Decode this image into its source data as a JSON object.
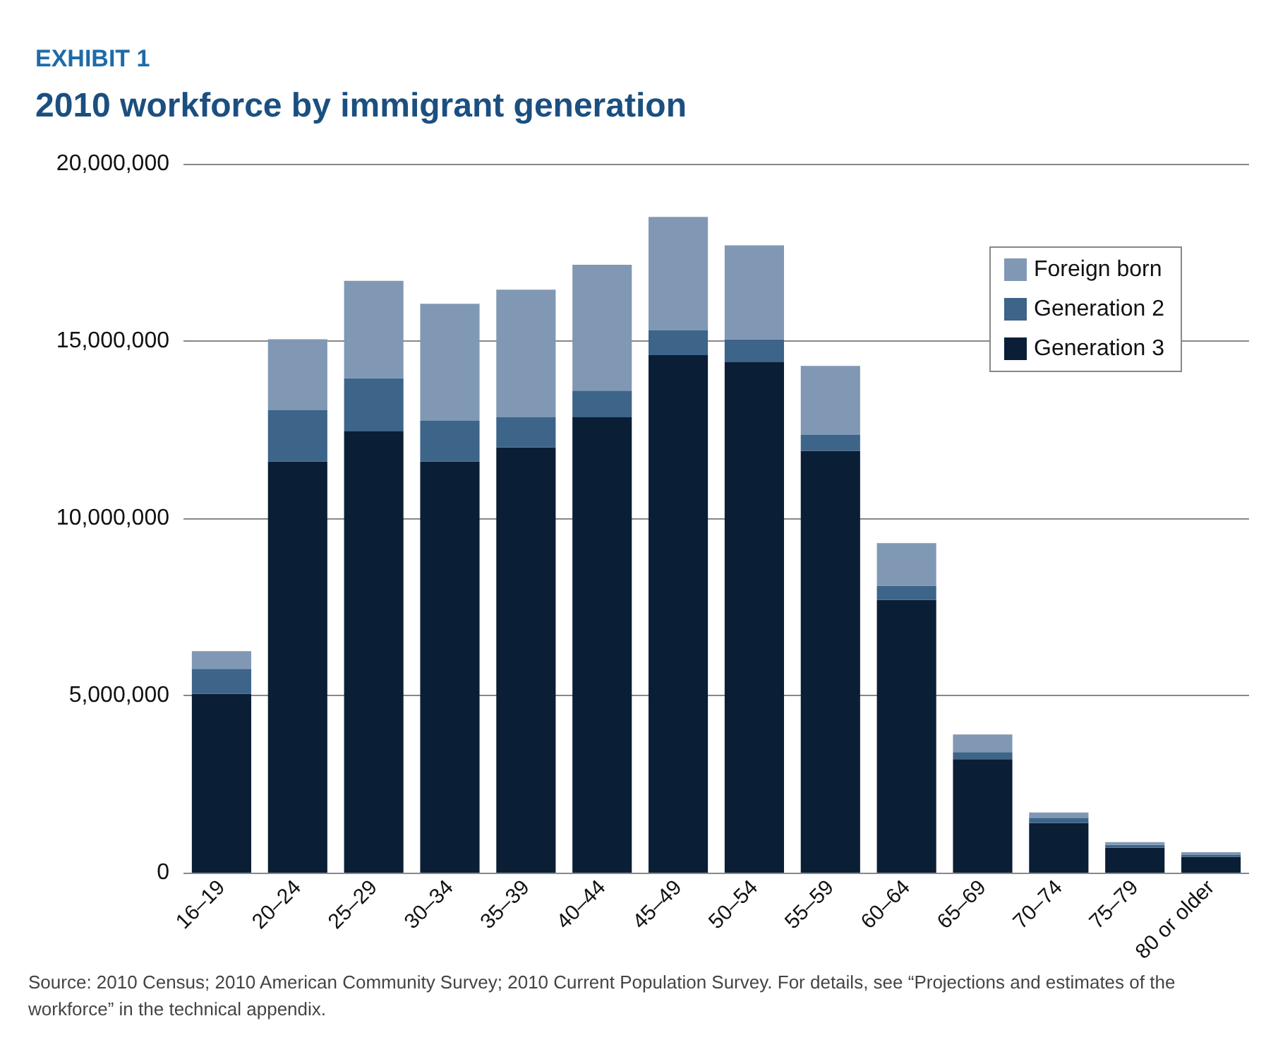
{
  "chart_data": {
    "type": "bar",
    "stacked": true,
    "title": "2010 workforce by immigrant generation",
    "subtitle": "EXHIBIT 1",
    "categories": [
      "16–19",
      "20–24",
      "25–29",
      "30–34",
      "35–39",
      "40–44",
      "45–49",
      "50–54",
      "55–59",
      "60–64",
      "65–69",
      "70–74",
      "75–79",
      "80 or older"
    ],
    "series": [
      {
        "name": "Generation 3",
        "color": "#0a1e36",
        "values": [
          5050000,
          11600000,
          12450000,
          11600000,
          12000000,
          12850000,
          14600000,
          14400000,
          11900000,
          7700000,
          3200000,
          1400000,
          700000,
          450000
        ]
      },
      {
        "name": "Generation 2",
        "color": "#3d6489",
        "values": [
          700000,
          1450000,
          1500000,
          1150000,
          850000,
          750000,
          700000,
          650000,
          450000,
          400000,
          200000,
          150000,
          80000,
          50000
        ]
      },
      {
        "name": "Foreign born",
        "color": "#8098b4",
        "values": [
          500000,
          2000000,
          2750000,
          3300000,
          3600000,
          3550000,
          3200000,
          2650000,
          1950000,
          1200000,
          500000,
          150000,
          80000,
          80000
        ]
      }
    ],
    "ylim": [
      0,
      20000000
    ],
    "yticks": [
      0,
      {
        "value": 5000000,
        "label": "5,000,000"
      },
      {
        "value": 10000000,
        "label": "10,000,000"
      },
      {
        "value": 15000000,
        "label": "15,000,000"
      },
      {
        "value": 20000000,
        "label": "20,000,000"
      }
    ],
    "grid": "y",
    "legend": "top right",
    "annotations": [
      "Source: 2010 Census; 2010 American Community Survey; 2010 Current Population Survey. For details, see “Projections and estimates of the workforce” in the technical appendix."
    ]
  }
}
